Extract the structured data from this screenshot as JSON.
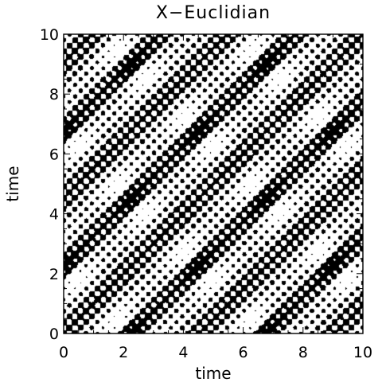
{
  "chart_data": {
    "type": "heatmap",
    "title": "X−Euclidian",
    "xlabel": "time",
    "ylabel": "time",
    "xlim": [
      0,
      10
    ],
    "ylim": [
      0,
      10
    ],
    "x_ticks": [
      "0",
      "2",
      "4",
      "6",
      "8",
      "10"
    ],
    "y_ticks": [
      "0",
      "2",
      "4",
      "6",
      "8",
      "10"
    ],
    "colormap": "binary",
    "colors": {
      "recurrent": "#000000",
      "non_recurrent": "#ffffff"
    },
    "grid": false,
    "legend": "none",
    "pattern_period_x": 4.5,
    "pattern_period_y": 4.5,
    "fine_frequency": 2.65,
    "threshold": 0.1
  }
}
